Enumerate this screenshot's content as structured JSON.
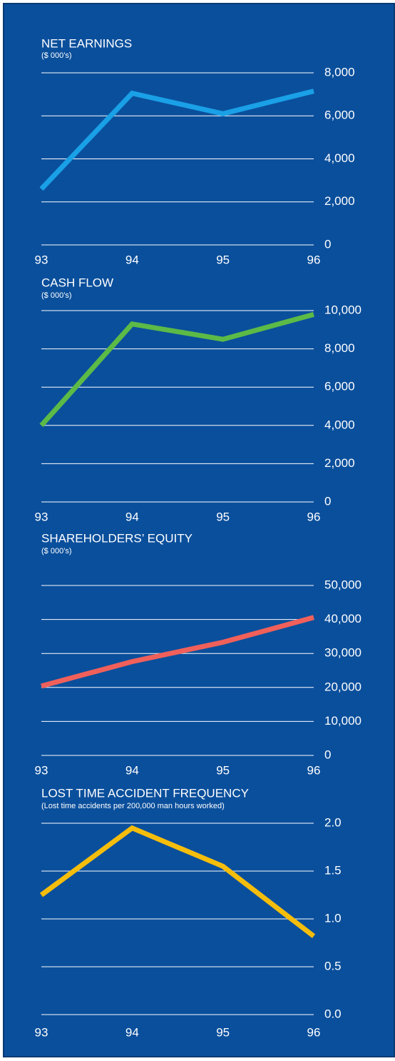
{
  "chart_data": [
    {
      "type": "line",
      "title": "NET EARNINGS",
      "subtitle": "($ 000’s)",
      "categories": [
        "93",
        "94",
        "95",
        "96"
      ],
      "values": [
        2600,
        7050,
        6100,
        7150
      ],
      "color": "#1aa0e6",
      "ylim": [
        0,
        8000
      ],
      "yticks": [
        {
          "value": 0,
          "label": "0"
        },
        {
          "value": 2000,
          "label": "2,000"
        },
        {
          "value": 4000,
          "label": "4,000"
        },
        {
          "value": 6000,
          "label": "6,000"
        },
        {
          "value": 8000,
          "label": "8,000"
        }
      ],
      "grid": true
    },
    {
      "type": "line",
      "title": "CASH FLOW",
      "subtitle": "($ 000’s)",
      "categories": [
        "93",
        "94",
        "95",
        "96"
      ],
      "values": [
        4000,
        9300,
        8500,
        9800
      ],
      "color": "#5cba47",
      "ylim": [
        0,
        10000
      ],
      "yticks": [
        {
          "value": 0,
          "label": "0"
        },
        {
          "value": 2000,
          "label": "2,000"
        },
        {
          "value": 4000,
          "label": "4,000"
        },
        {
          "value": 6000,
          "label": "6,000"
        },
        {
          "value": 8000,
          "label": "8,000"
        },
        {
          "value": 10000,
          "label": "10,000"
        }
      ],
      "grid": true
    },
    {
      "type": "line",
      "title": "SHAREHOLDERS’ EQUITY",
      "subtitle": "($ 000’s)",
      "categories": [
        "93",
        "94",
        "95",
        "96"
      ],
      "values": [
        20400,
        27600,
        33300,
        40600
      ],
      "color": "#f0605a",
      "ylim": [
        0,
        50000
      ],
      "yticks": [
        {
          "value": 0,
          "label": "0"
        },
        {
          "value": 10000,
          "label": "10,000"
        },
        {
          "value": 20000,
          "label": "20,000"
        },
        {
          "value": 30000,
          "label": "30,000"
        },
        {
          "value": 40000,
          "label": "40,000"
        },
        {
          "value": 50000,
          "label": "50,000"
        }
      ],
      "grid": true
    },
    {
      "type": "line",
      "title": "LOST TIME ACCIDENT FREQUENCY",
      "subtitle": "(Lost time accidents per 200,000 man hours worked)",
      "categories": [
        "93",
        "94",
        "95",
        "96"
      ],
      "values": [
        1.25,
        1.95,
        1.55,
        0.82
      ],
      "color": "#f5bd0c",
      "ylim": [
        0,
        2
      ],
      "yticks": [
        {
          "value": 0,
          "label": "0.0"
        },
        {
          "value": 0.5,
          "label": "0.5"
        },
        {
          "value": 1,
          "label": "1.0"
        },
        {
          "value": 1.5,
          "label": "1.5"
        },
        {
          "value": 2,
          "label": "2.0"
        }
      ],
      "grid": true
    }
  ]
}
